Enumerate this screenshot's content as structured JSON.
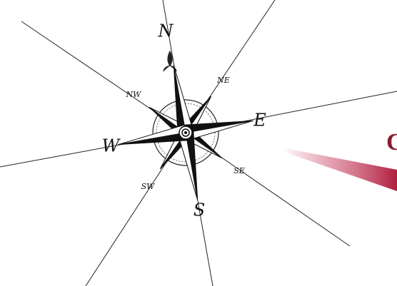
{
  "compass": {
    "north": "N",
    "north_east": "NE",
    "east": "E",
    "south_east": "SE",
    "south": "S",
    "south_west": "SW",
    "west": "W",
    "north_west": "NW"
  },
  "brand": {
    "letter": "C"
  }
}
